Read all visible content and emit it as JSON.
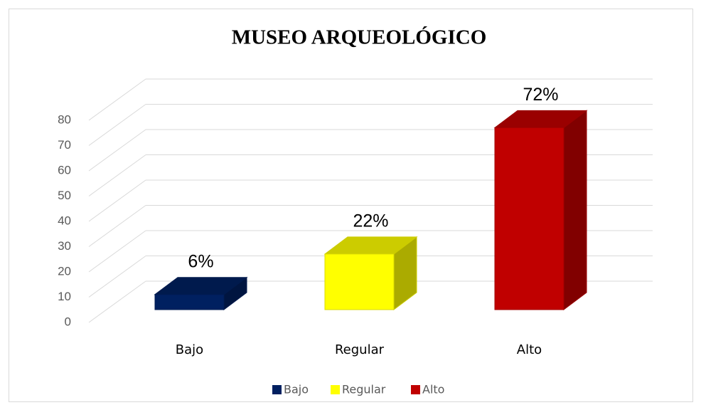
{
  "chart_data": {
    "type": "bar3d",
    "title": "MUSEO ARQUEOLÓGICO",
    "categories": [
      "Bajo",
      "Regular",
      "Alto"
    ],
    "values": [
      6,
      22,
      72
    ],
    "value_labels": [
      "6%",
      "22%",
      "72%"
    ],
    "colors": [
      "#002060",
      "#ffff00",
      "#c00000"
    ],
    "ylim": [
      0,
      80
    ],
    "yticks": [
      0,
      10,
      20,
      30,
      40,
      50,
      60,
      70,
      80
    ],
    "grid": true,
    "legend": "bottom"
  }
}
